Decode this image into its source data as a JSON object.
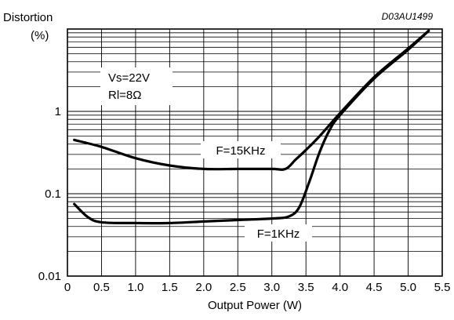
{
  "chart_data": {
    "type": "line",
    "code": "D03AU1499",
    "xlabel": "Output Power (W)",
    "ylabel_line1": "Distortion",
    "ylabel_line2": "(%)",
    "xlim": [
      0,
      5.5
    ],
    "ylim": [
      0.01,
      10
    ],
    "y_scale": "log",
    "grid": true,
    "x_ticks": [
      0,
      0.5,
      1.0,
      1.5,
      2.0,
      2.5,
      3.0,
      3.5,
      4.0,
      4.5,
      5.0,
      5.5
    ],
    "x_tick_labels": [
      "0",
      "0.5",
      "1.0",
      "1.5",
      "2.0",
      "2.5",
      "3.0",
      "3.5",
      "4.0",
      "4.5",
      "5.0",
      "5.5"
    ],
    "y_ticks": [
      0.01,
      0.1,
      1
    ],
    "y_tick_labels": [
      "0.01",
      "0.1",
      "1"
    ],
    "conditions": [
      "Vs=22V",
      "Rl=8Ω"
    ],
    "series": [
      {
        "name": "F=15KHz",
        "x": [
          0.1,
          0.5,
          1.0,
          1.5,
          2.0,
          2.5,
          3.0,
          3.2,
          3.35,
          3.5,
          3.7,
          4.0,
          4.5,
          5.0,
          5.3
        ],
        "values": [
          0.45,
          0.37,
          0.27,
          0.22,
          0.2,
          0.2,
          0.2,
          0.2,
          0.26,
          0.34,
          0.5,
          0.95,
          2.6,
          5.8,
          9.5
        ]
      },
      {
        "name": "F=1KHz",
        "x": [
          0.1,
          0.3,
          0.5,
          1.0,
          1.5,
          2.0,
          2.5,
          3.0,
          3.25,
          3.4,
          3.55,
          3.7,
          3.85,
          4.0,
          4.5,
          5.0,
          5.3
        ],
        "values": [
          0.075,
          0.052,
          0.045,
          0.044,
          0.044,
          0.046,
          0.048,
          0.05,
          0.053,
          0.068,
          0.14,
          0.32,
          0.6,
          0.9,
          2.5,
          5.6,
          9.5
        ]
      }
    ]
  }
}
